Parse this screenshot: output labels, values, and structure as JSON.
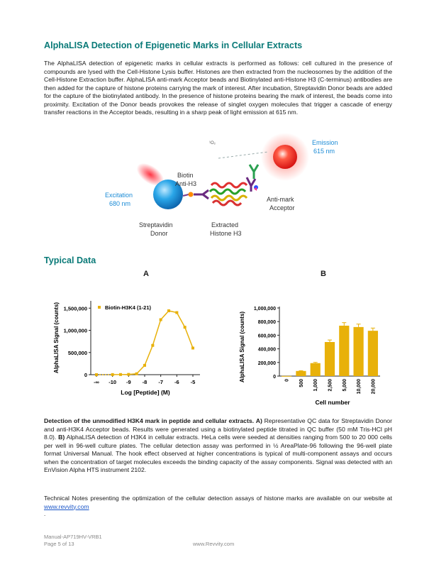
{
  "heading": "AlphaLISA Detection of Epigenetic Marks in Cellular Extracts",
  "intro": "The AlphaLISA detection of epigenetic marks in cellular extracts is performed as follows: cell cultured in the presence of compounds are lysed with the Cell-Histone Lysis buffer. Histones are then extracted from the nucleosomes by the addition of the Cell-Histone Extraction buffer. AlphaLISA anti-mark Acceptor beads and Biotinylated anti-Histone H3 (C-terminus) antibodies are then added for the capture of histone proteins carrying the mark of interest. After incubation, Streptavidin Donor beads are added for the capture of the biotinylated antibody. In the presence of histone proteins bearing the mark of interest, the beads come into proximity. Excitation of the Donor beads provokes the release of singlet oxygen molecules that trigger a cascade of energy transfer reactions in the Acceptor beads, resulting in a sharp peak of light emission at 615 nm.",
  "diagram": {
    "emission": "Emission",
    "emission_nm": "615 nm",
    "excitation": "Excitation",
    "excitation_nm": "680 nm",
    "biotin": "Biotin",
    "anti_h3": "Anti-H3",
    "oxygen": "¹O₂",
    "anti_mark": "Anti-mark",
    "acceptor": "Acceptor",
    "streptavidin": "Streptavidin",
    "donor": "Donor",
    "extracted": "Extracted",
    "histone": "Histone H3"
  },
  "typical_data": "Typical Data",
  "panel_a": "A",
  "panel_b": "B",
  "chart_data": [
    {
      "type": "scatter",
      "legend": [
        "Biotin-H3K4 (1-21)"
      ],
      "xlabel": "Log [Peptide] (M)",
      "ylabel": "AlphaLISA Signal (counts)",
      "xticks": [
        "-∞",
        "-10",
        "-9",
        "-8",
        "-7",
        "-6",
        "-5"
      ],
      "yticks": [
        "0",
        "500,000",
        "1,000,000",
        "1,500,000"
      ],
      "ylim": [
        0,
        1600000
      ],
      "color": "#e8b10a",
      "series": [
        {
          "name": "Biotin-H3K4 (1-21)",
          "x": [
            "-∞",
            -10,
            -9.5,
            -9,
            -8.5,
            -8,
            -7.5,
            -7,
            -6.5,
            -6,
            -5.5,
            -5
          ],
          "y": [
            0,
            2000,
            3000,
            6000,
            20000,
            210000,
            660000,
            1240000,
            1440000,
            1400000,
            1070000,
            600000
          ]
        }
      ]
    },
    {
      "type": "bar",
      "xlabel": "Cell number",
      "ylabel": "AlphaLISA Signal (counts)",
      "categories": [
        "0",
        "500",
        "1,000",
        "2,500",
        "5,000",
        "10,000",
        "20,000"
      ],
      "values": [
        2000,
        75000,
        190000,
        500000,
        740000,
        720000,
        665000
      ],
      "yticks": [
        "0",
        "200,000",
        "400,000",
        "600,000",
        "800,000",
        "1,000,000"
      ],
      "ylim": [
        0,
        1000000
      ],
      "color": "#e8b10a"
    }
  ],
  "caption": {
    "bold": "Detection of the unmodified H3K4 mark in peptide and cellular extracts.",
    "a_label": "A)",
    "a_text": "Representative QC data for Streptavidin Donor and anti-H3K4 Acceptor beads. Results were generated using a biotinylated peptide titrated in QC buffer (50 mM Tris-HCl pH 8.0).",
    "b_label": "B)",
    "b_text": "AlphaLISA detection of H3K4 in cellular extracts. HeLa cells were seeded at densities ranging from 500 to 20 000 cells per well in 96-well culture plates. The cellular detection assay was performed in ½ AreaPlate-96 following the 96-well plate format Universal Manual. The hook effect observed at higher concentrations is typical of multi-component assays and occurs when the concentration of target molecules exceeds the binding capacity of the assay components. Signal was detected with an EnVision Alpha HTS instrument 2102."
  },
  "notes_text": "Technical Notes presenting the optimization of the cellular detection assays of histone marks are available on our website at",
  "notes_link": "www.revvity.com",
  "dot": ".",
  "footer": {
    "manual": "Manual-AP719HV-VRB1",
    "page": "Page 5 of 13",
    "site": "www.Revvity.com"
  }
}
